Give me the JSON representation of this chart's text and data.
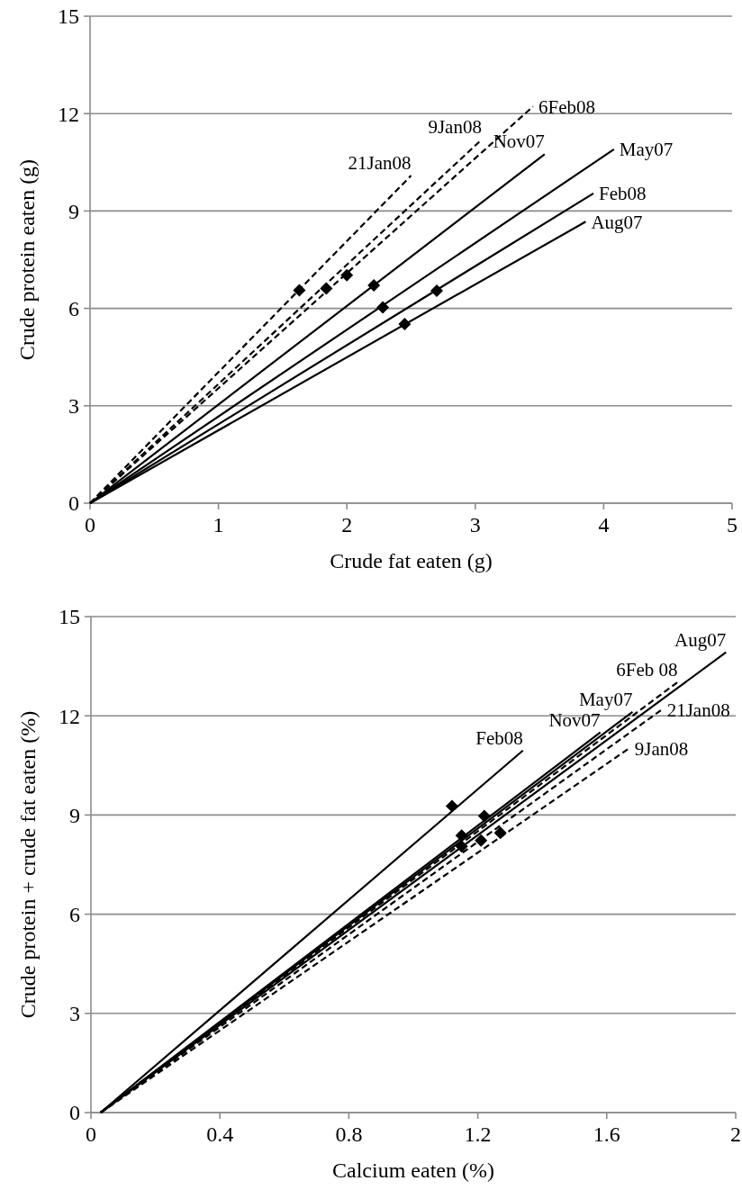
{
  "chart_data": [
    {
      "type": "line",
      "xlabel": "Crude fat eaten (g)",
      "ylabel": "Crude protein eaten (g)",
      "xlim": [
        0,
        5
      ],
      "xticks": [
        0,
        1,
        2,
        3,
        4,
        5
      ],
      "ylim": [
        0,
        15
      ],
      "yticks": [
        0,
        3,
        6,
        9,
        12,
        15
      ],
      "grid": "y",
      "series": [
        {
          "name": "21Jan08",
          "color": "#000000",
          "line_style": "dashed",
          "marker": "none",
          "x": [
            0,
            2.5
          ],
          "values": [
            0,
            10.09
          ]
        },
        {
          "name": "9Jan08",
          "color": "#000000",
          "line_style": "dashed",
          "marker": "none",
          "x": [
            0,
            3.05
          ],
          "values": [
            0,
            11.2
          ]
        },
        {
          "name": "6Feb08",
          "color": "#000000",
          "line_style": "dashed",
          "marker": "none",
          "x": [
            0,
            3.45
          ],
          "values": [
            0,
            12.22
          ]
        },
        {
          "name": "Nov07",
          "color": "#000000",
          "line_style": "solid",
          "marker": "none",
          "x": [
            0,
            3.54
          ],
          "values": [
            0,
            10.75
          ]
        },
        {
          "name": "May07",
          "color": "#000000",
          "line_style": "solid",
          "marker": "none",
          "x": [
            0,
            4.08
          ],
          "values": [
            0,
            10.9
          ]
        },
        {
          "name": "Feb08",
          "color": "#000000",
          "line_style": "solid",
          "marker": "none",
          "x": [
            0,
            3.92
          ],
          "values": [
            0,
            9.54
          ]
        },
        {
          "name": "Aug07",
          "color": "#000000",
          "line_style": "solid",
          "marker": "none",
          "x": [
            0,
            3.86
          ],
          "values": [
            0,
            8.67
          ]
        },
        {
          "type": "scatter",
          "color": "#000000",
          "marker": "diamond",
          "x": [
            1.63,
            1.84,
            2.0,
            2.21,
            2.28,
            2.7,
            2.45
          ],
          "values": [
            6.56,
            6.61,
            7.02,
            6.71,
            6.03,
            6.54,
            5.52
          ]
        }
      ]
    },
    {
      "type": "line",
      "xlabel": "Calcium eaten (%)",
      "ylabel": "Crude protein + crude fat eaten (%)",
      "xlim": [
        0,
        2
      ],
      "xticks": [
        0,
        0.4,
        0.8,
        1.2,
        1.6,
        2
      ],
      "ylim": [
        0,
        15
      ],
      "yticks": [
        0,
        3,
        6,
        9,
        12,
        15
      ],
      "grid": "y",
      "series": [
        {
          "name": "Aug07",
          "color": "#000000",
          "line_style": "solid",
          "marker": "none",
          "x": [
            0.03,
            1.97
          ],
          "values": [
            0,
            13.92
          ]
        },
        {
          "name": "6Feb 08",
          "color": "#000000",
          "line_style": "dashed",
          "marker": "none",
          "x": [
            0.03,
            1.82
          ],
          "values": [
            0,
            13.02
          ]
        },
        {
          "name": "May07",
          "color": "#000000",
          "line_style": "solid",
          "marker": "none",
          "x": [
            0.03,
            1.68
          ],
          "values": [
            0,
            12.12
          ]
        },
        {
          "name": "21Jan08",
          "color": "#000000",
          "line_style": "dashed",
          "marker": "none",
          "x": [
            0.03,
            1.77
          ],
          "values": [
            0,
            12.18
          ]
        },
        {
          "name": "Nov07",
          "color": "#000000",
          "line_style": "solid",
          "marker": "none",
          "x": [
            0.03,
            1.58
          ],
          "values": [
            0,
            11.5
          ]
        },
        {
          "name": "9Jan08",
          "color": "#000000",
          "line_style": "dashed",
          "marker": "none",
          "x": [
            0.03,
            1.67
          ],
          "values": [
            0,
            11.02
          ]
        },
        {
          "name": "Feb08",
          "color": "#000000",
          "line_style": "solid",
          "marker": "none",
          "x": [
            0.03,
            1.34
          ],
          "values": [
            0,
            10.95
          ]
        },
        {
          "type": "scatter",
          "color": "#000000",
          "marker": "diamond",
          "x": [
            1.12,
            1.22,
            1.15,
            1.15,
            1.21,
            1.27
          ],
          "values": [
            9.27,
            8.97,
            8.38,
            8.05,
            8.23,
            8.46
          ]
        }
      ]
    }
  ]
}
